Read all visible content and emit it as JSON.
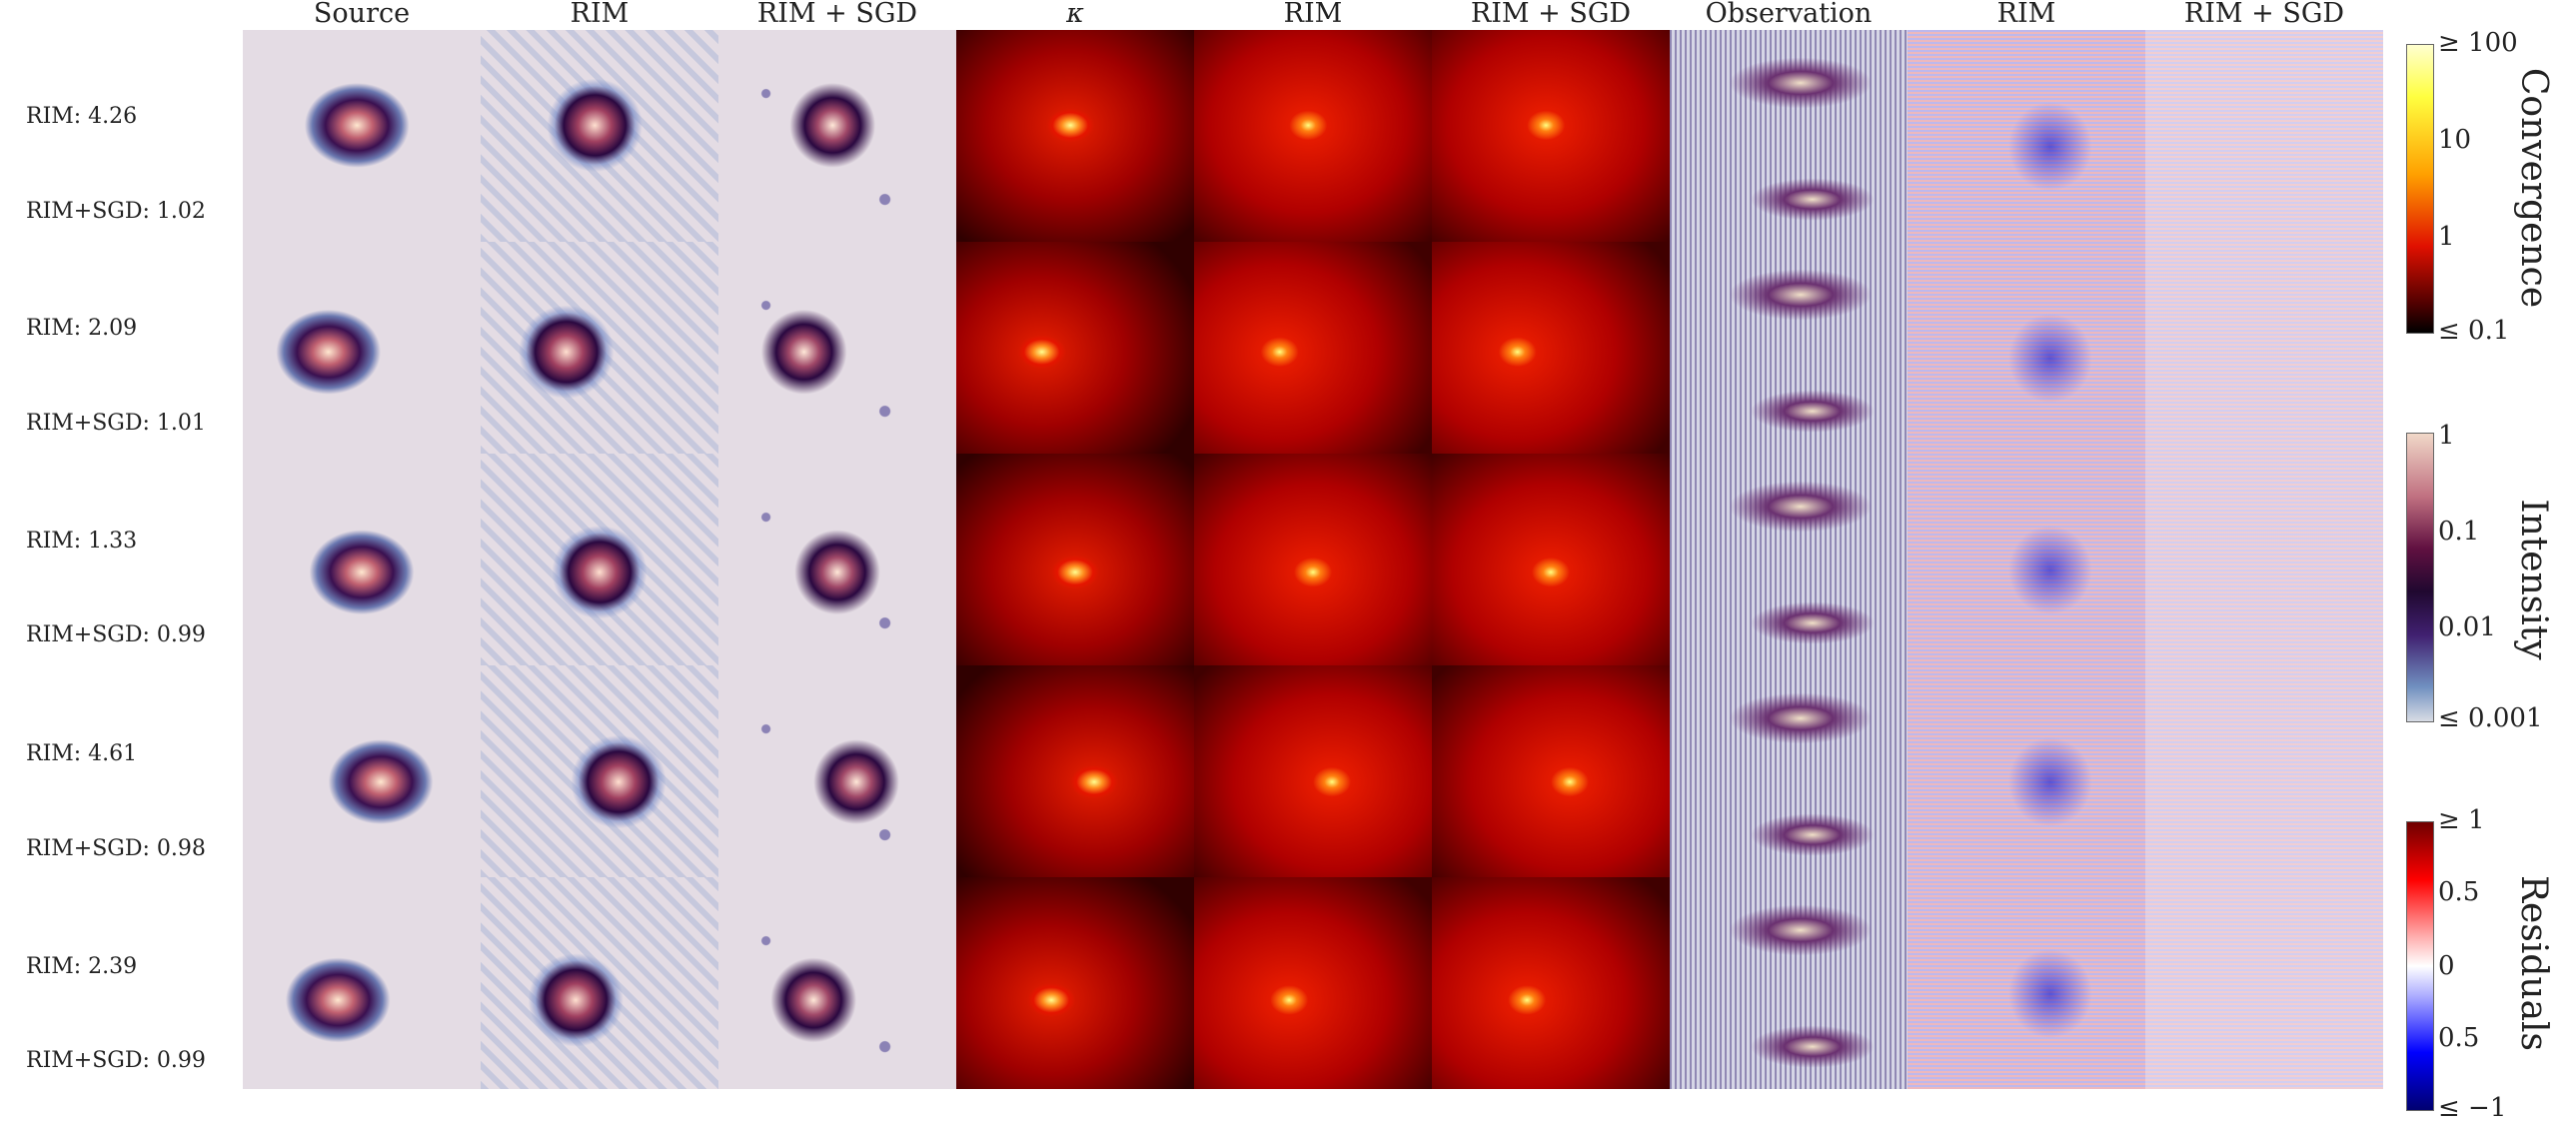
{
  "headers": {
    "source": "Source",
    "rim_source": "RIM",
    "rimsgd_source": "RIM + SGD",
    "kappa": "κ",
    "rim_kappa": "RIM",
    "rimsgd_kappa": "RIM + SGD",
    "observation": "Observation",
    "rim_residual": "RIM",
    "rimsgd_residual": "RIM + SGD"
  },
  "rows": [
    {
      "rim": "RIM: 4.26",
      "rimsgd": "RIM+SGD: 1.02"
    },
    {
      "rim": "RIM: 2.09",
      "rimsgd": "RIM+SGD: 1.01"
    },
    {
      "rim": "RIM: 1.33",
      "rimsgd": "RIM+SGD: 0.99"
    },
    {
      "rim": "RIM: 4.61",
      "rimsgd": "RIM+SGD: 0.98"
    },
    {
      "rim": "RIM: 2.39",
      "rimsgd": "RIM+SGD: 0.99"
    }
  ],
  "colorbars": {
    "convergence": {
      "title": "Convergence",
      "ticks": [
        "≥ 100",
        "10",
        "1",
        "≤ 0.1"
      ]
    },
    "intensity": {
      "title": "Intensity",
      "ticks": [
        "1",
        "0.1",
        "0.01",
        "≤ 0.001"
      ]
    },
    "residuals": {
      "title": "Residuals",
      "ticks": [
        "≥ 1",
        "0.5",
        "0",
        "0.5",
        "≤ −1"
      ]
    }
  },
  "colors": {
    "source_background": "#e4dce4",
    "kappa_dark": "#3a0000",
    "kappa_core": "#ffff66",
    "observation_background": "#d6d6e6",
    "residual_positive": "#d01010",
    "residual_negative": "#1010d0"
  }
}
